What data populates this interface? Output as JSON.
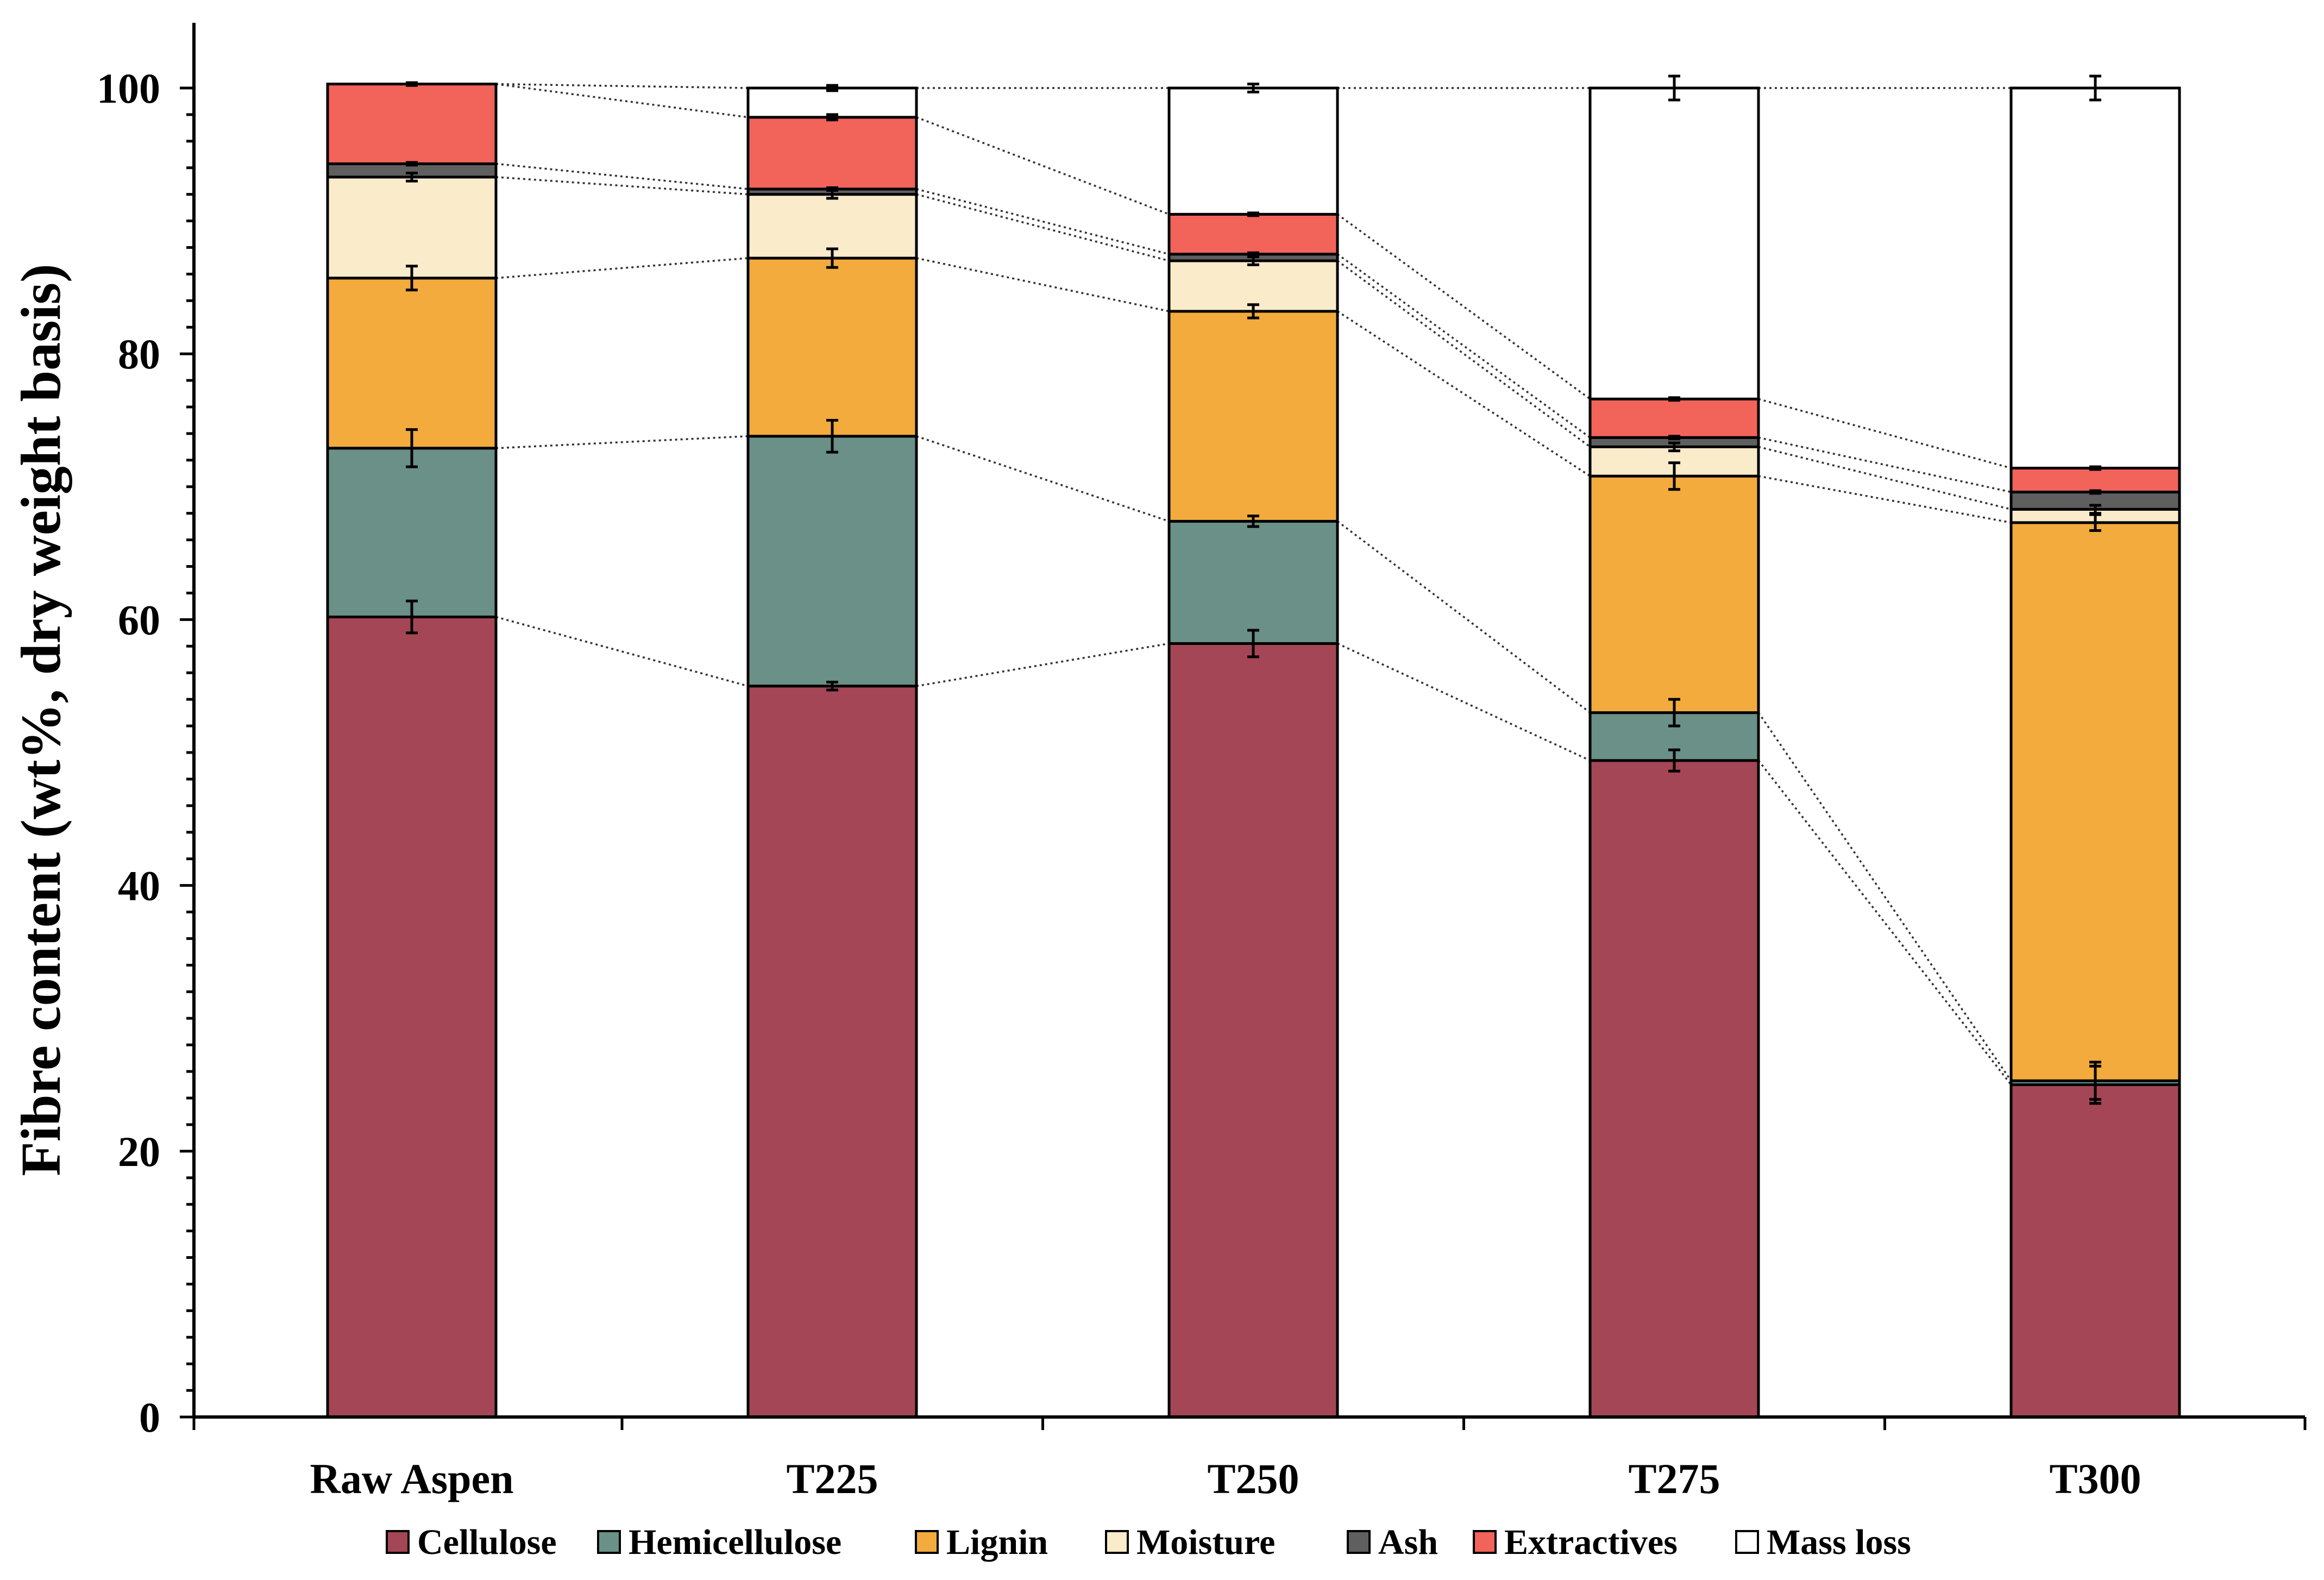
{
  "chart_data": {
    "type": "bar",
    "stacked": true,
    "title": "",
    "xlabel": "",
    "ylabel": "Fibre content (wt%, dry weight basis)",
    "ylim": [
      0,
      100
    ],
    "yticks": [
      0,
      20,
      40,
      60,
      80,
      100
    ],
    "grid": false,
    "legend_position": "bottom",
    "categories": [
      "Raw Aspen",
      "T225",
      "T250",
      "T275",
      "T300"
    ],
    "series": [
      {
        "name": "Cellulose",
        "color": "#A44655",
        "values": [
          60.2,
          55.0,
          58.2,
          49.4,
          25.0
        ],
        "errors": [
          1.2,
          0.3,
          1.0,
          0.8,
          1.4
        ]
      },
      {
        "name": "Hemicellulose",
        "color": "#6A9088",
        "values": [
          12.7,
          18.8,
          9.2,
          3.6,
          0.3
        ],
        "errors": [
          1.4,
          1.2,
          0.4,
          1.0,
          1.4
        ]
      },
      {
        "name": "Lignin",
        "color": "#F2AB3C",
        "values": [
          12.8,
          13.4,
          15.8,
          17.8,
          42.0
        ],
        "errors": [
          0.9,
          0.7,
          0.5,
          1.0,
          0.6
        ]
      },
      {
        "name": "Moisture",
        "color": "#FAEBCB",
        "values": [
          7.6,
          4.8,
          3.8,
          2.2,
          1.0
        ],
        "errors": [
          0.3,
          0.3,
          0.3,
          0.3,
          0.3
        ]
      },
      {
        "name": "Ash",
        "color": "#5F5F5F",
        "values": [
          1.0,
          0.4,
          0.5,
          0.7,
          1.3
        ],
        "errors": [
          0.1,
          0.1,
          0.1,
          0.1,
          0.1
        ]
      },
      {
        "name": "Extractives",
        "color": "#F2635A",
        "values": [
          6.0,
          5.4,
          3.0,
          2.9,
          1.8
        ],
        "errors": [
          0.1,
          0.2,
          0.1,
          0.1,
          0.1
        ]
      },
      {
        "name": "Mass loss",
        "color": "#FFFFFF",
        "values": [
          0.0,
          2.2,
          9.5,
          23.4,
          28.6
        ],
        "errors": [
          0.1,
          0.2,
          0.3,
          0.9,
          0.9
        ]
      }
    ]
  }
}
